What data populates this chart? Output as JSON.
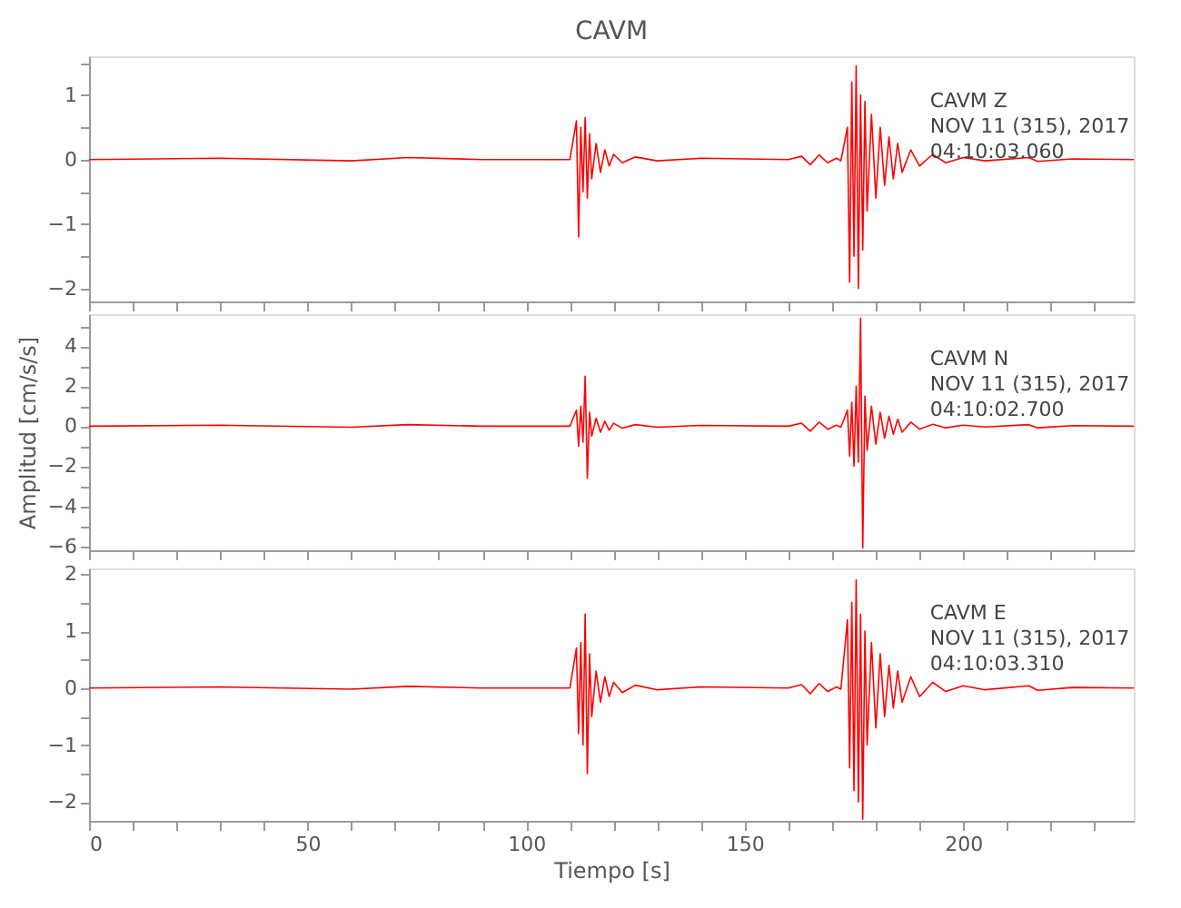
{
  "chart_data": [
    {
      "type": "line",
      "title": "CAVM",
      "annotations": [
        "CAVM   Z",
        "NOV 11 (315), 2017",
        "04:10:03.060"
      ],
      "xlim": [
        0,
        239
      ],
      "ylim": [
        -2.2,
        1.6
      ],
      "yticks": [
        {
          "value": -2.0,
          "label": "−2"
        },
        {
          "value": -1.5,
          "label": null
        },
        {
          "value": -1.0,
          "label": "−1"
        },
        {
          "value": -0.5,
          "label": null
        },
        {
          "value": 0,
          "label": "0"
        },
        {
          "value": 0.5,
          "label": null
        },
        {
          "value": 1.0,
          "label": "1"
        },
        {
          "value": 1.5,
          "label": null
        }
      ],
      "xticks": [
        {
          "value": 0,
          "label": null
        },
        {
          "value": 10,
          "label": null
        },
        {
          "value": 20,
          "label": null
        },
        {
          "value": 30,
          "label": null
        },
        {
          "value": 40,
          "label": null
        },
        {
          "value": 50,
          "label": null
        },
        {
          "value": 60,
          "label": null
        },
        {
          "value": 70,
          "label": null
        },
        {
          "value": 80,
          "label": null
        },
        {
          "value": 90,
          "label": null
        },
        {
          "value": 100,
          "label": null
        },
        {
          "value": 110,
          "label": null
        },
        {
          "value": 120,
          "label": null
        },
        {
          "value": 130,
          "label": null
        },
        {
          "value": 140,
          "label": null
        },
        {
          "value": 150,
          "label": null
        },
        {
          "value": 160,
          "label": null
        },
        {
          "value": 170,
          "label": null
        },
        {
          "value": 180,
          "label": null
        },
        {
          "value": 190,
          "label": null
        },
        {
          "value": 200,
          "label": null
        },
        {
          "value": 210,
          "label": null
        },
        {
          "value": 220,
          "label": null
        },
        {
          "value": 230,
          "label": null
        }
      ],
      "tick_labels": "y",
      "grid": false,
      "marker": "none",
      "series": [
        {
          "color": "#ff0000",
          "x": [
            0,
            30,
            60,
            73,
            90,
            110,
            111.5,
            112,
            112.5,
            113,
            113.5,
            114,
            114.5,
            115,
            116,
            117,
            118,
            119,
            120,
            122,
            125,
            130,
            140,
            160,
            163,
            165,
            167,
            169,
            171,
            172,
            173.5,
            174,
            174.5,
            175,
            175.5,
            176,
            176.5,
            177,
            177.5,
            178,
            179,
            180,
            181,
            182,
            183,
            184,
            185,
            186,
            188,
            190,
            193,
            196,
            200,
            205,
            215,
            217,
            225,
            239
          ],
          "values": [
            0,
            0.02,
            -0.02,
            0.03,
            0,
            0,
            0.6,
            -1.2,
            0.5,
            -0.5,
            0.65,
            -0.6,
            0.4,
            -0.3,
            0.25,
            -0.2,
            0.15,
            -0.1,
            0.08,
            -0.05,
            0.04,
            -0.02,
            0.02,
            0,
            0.05,
            -0.08,
            0.07,
            -0.05,
            0.02,
            -0.02,
            0.5,
            -1.9,
            1.2,
            -1.5,
            1.45,
            -2.0,
            1.0,
            -1.4,
            0.9,
            -0.8,
            0.7,
            -0.6,
            0.5,
            -0.4,
            0.35,
            -0.3,
            0.25,
            -0.2,
            0.15,
            -0.1,
            0.08,
            -0.05,
            0.03,
            -0.02,
            0.03,
            -0.03,
            0.01,
            0
          ]
        }
      ]
    },
    {
      "type": "line",
      "ylabel": "Amplitud [cm/s/s]",
      "annotations": [
        "CAVM   N",
        "NOV 11 (315), 2017",
        "04:10:02.700"
      ],
      "xlim": [
        0,
        239
      ],
      "ylim": [
        -6.2,
        5.6
      ],
      "yticks": [
        {
          "value": -6,
          "label": "−6"
        },
        {
          "value": -5,
          "label": null
        },
        {
          "value": -4,
          "label": "−4"
        },
        {
          "value": -3,
          "label": null
        },
        {
          "value": -2,
          "label": "−2"
        },
        {
          "value": -1,
          "label": null
        },
        {
          "value": 0,
          "label": "0"
        },
        {
          "value": 1,
          "label": null
        },
        {
          "value": 2,
          "label": "2"
        },
        {
          "value": 3,
          "label": null
        },
        {
          "value": 4,
          "label": "4"
        },
        {
          "value": 5,
          "label": null
        }
      ],
      "xticks": [
        {
          "value": 0,
          "label": null
        },
        {
          "value": 10,
          "label": null
        },
        {
          "value": 20,
          "label": null
        },
        {
          "value": 30,
          "label": null
        },
        {
          "value": 40,
          "label": null
        },
        {
          "value": 50,
          "label": null
        },
        {
          "value": 60,
          "label": null
        },
        {
          "value": 70,
          "label": null
        },
        {
          "value": 80,
          "label": null
        },
        {
          "value": 90,
          "label": null
        },
        {
          "value": 100,
          "label": null
        },
        {
          "value": 110,
          "label": null
        },
        {
          "value": 120,
          "label": null
        },
        {
          "value": 130,
          "label": null
        },
        {
          "value": 140,
          "label": null
        },
        {
          "value": 150,
          "label": null
        },
        {
          "value": 160,
          "label": null
        },
        {
          "value": 170,
          "label": null
        },
        {
          "value": 180,
          "label": null
        },
        {
          "value": 190,
          "label": null
        },
        {
          "value": 200,
          "label": null
        },
        {
          "value": 210,
          "label": null
        },
        {
          "value": 220,
          "label": null
        },
        {
          "value": 230,
          "label": null
        }
      ],
      "tick_labels": "y",
      "grid": false,
      "marker": "none",
      "series": [
        {
          "color": "#ff0000",
          "x": [
            0,
            30,
            60,
            73,
            90,
            110,
            111.5,
            112,
            112.5,
            113,
            113.5,
            114,
            114.5,
            115,
            116,
            117,
            118,
            119,
            120,
            122,
            125,
            130,
            140,
            160,
            163,
            165,
            167,
            169,
            171,
            172,
            173.5,
            174,
            174.5,
            175,
            175.5,
            176,
            176.5,
            177,
            177.5,
            178,
            179,
            180,
            181,
            182,
            183,
            184,
            185,
            186,
            188,
            190,
            193,
            196,
            200,
            205,
            215,
            217,
            225,
            239
          ],
          "values": [
            0,
            0.05,
            -0.05,
            0.08,
            0,
            0,
            0.8,
            -1.0,
            1.0,
            -0.8,
            2.5,
            -2.6,
            0.7,
            -0.5,
            0.4,
            -0.3,
            0.25,
            -0.2,
            0.15,
            -0.1,
            0.08,
            -0.05,
            0.04,
            0,
            0.15,
            -0.25,
            0.2,
            -0.15,
            0.05,
            -0.05,
            0.8,
            -1.5,
            1.2,
            -2.0,
            2.0,
            -1.8,
            5.4,
            -6.1,
            1.5,
            -1.2,
            1.0,
            -0.9,
            0.7,
            -0.6,
            0.5,
            -0.4,
            0.35,
            -0.3,
            0.2,
            -0.15,
            0.1,
            -0.08,
            0.05,
            -0.04,
            0.08,
            -0.08,
            0.03,
            0
          ]
        }
      ]
    },
    {
      "type": "line",
      "xlabel": "Tiempo [s]",
      "annotations": [
        "CAVM   E",
        "NOV 11 (315), 2017",
        "04:10:03.310"
      ],
      "xlim": [
        0,
        239
      ],
      "ylim": [
        -2.33,
        2.1
      ],
      "yticks": [
        {
          "value": -2.0,
          "label": "−2"
        },
        {
          "value": -1.5,
          "label": null
        },
        {
          "value": -1.0,
          "label": "−1"
        },
        {
          "value": -0.5,
          "label": null
        },
        {
          "value": 0,
          "label": "0"
        },
        {
          "value": 0.5,
          "label": null
        },
        {
          "value": 1.0,
          "label": "1"
        },
        {
          "value": 1.5,
          "label": null
        },
        {
          "value": 2.0,
          "label": "2"
        }
      ],
      "xticks": [
        {
          "value": 0,
          "label": "0"
        },
        {
          "value": 10,
          "label": null
        },
        {
          "value": 20,
          "label": null
        },
        {
          "value": 30,
          "label": null
        },
        {
          "value": 40,
          "label": null
        },
        {
          "value": 50,
          "label": "50"
        },
        {
          "value": 60,
          "label": null
        },
        {
          "value": 70,
          "label": null
        },
        {
          "value": 80,
          "label": null
        },
        {
          "value": 90,
          "label": null
        },
        {
          "value": 100,
          "label": "100"
        },
        {
          "value": 110,
          "label": null
        },
        {
          "value": 120,
          "label": null
        },
        {
          "value": 130,
          "label": null
        },
        {
          "value": 140,
          "label": null
        },
        {
          "value": 150,
          "label": "150"
        },
        {
          "value": 160,
          "label": null
        },
        {
          "value": 170,
          "label": null
        },
        {
          "value": 180,
          "label": null
        },
        {
          "value": 190,
          "label": null
        },
        {
          "value": 200,
          "label": "200"
        },
        {
          "value": 210,
          "label": null
        },
        {
          "value": 220,
          "label": null
        },
        {
          "value": 230,
          "label": null
        }
      ],
      "grid": false,
      "marker": "none",
      "series": [
        {
          "color": "#ff0000",
          "x": [
            0,
            30,
            60,
            73,
            90,
            110,
            111.5,
            112,
            112.5,
            113,
            113.5,
            114,
            114.5,
            115,
            116,
            117,
            118,
            119,
            120,
            122,
            125,
            130,
            140,
            160,
            163,
            165,
            167,
            169,
            171,
            172,
            173.5,
            174,
            174.5,
            175,
            175.5,
            176,
            176.5,
            177,
            177.5,
            178,
            179,
            180,
            181,
            182,
            183,
            184,
            185,
            186,
            188,
            190,
            193,
            196,
            200,
            205,
            215,
            217,
            225,
            239
          ],
          "values": [
            0,
            0.02,
            -0.02,
            0.03,
            0,
            0,
            0.7,
            -0.8,
            0.8,
            -1.0,
            1.3,
            -1.5,
            0.6,
            -0.5,
            0.3,
            -0.25,
            0.2,
            -0.15,
            0.1,
            -0.08,
            0.05,
            -0.03,
            0.02,
            0,
            0.06,
            -0.1,
            0.08,
            -0.06,
            0.02,
            -0.02,
            1.2,
            -1.4,
            1.5,
            -1.8,
            1.9,
            -2.0,
            1.3,
            -2.3,
            1.0,
            -1.0,
            0.8,
            -0.7,
            0.6,
            -0.5,
            0.4,
            -0.35,
            0.3,
            -0.25,
            0.2,
            -0.15,
            0.1,
            -0.06,
            0.04,
            -0.03,
            0.04,
            -0.04,
            0.01,
            0
          ]
        }
      ]
    }
  ]
}
